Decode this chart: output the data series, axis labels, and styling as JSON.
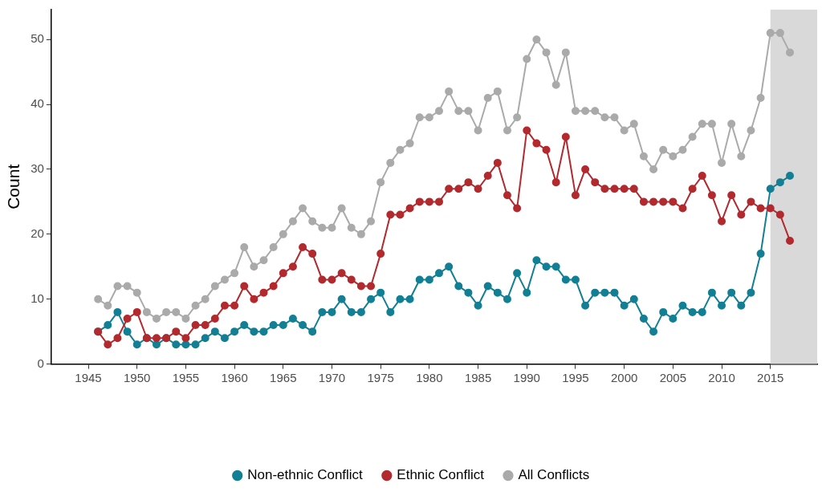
{
  "chart_data": {
    "type": "line",
    "ylabel": "Count",
    "x": [
      1946,
      1947,
      1948,
      1949,
      1950,
      1951,
      1952,
      1953,
      1954,
      1955,
      1956,
      1957,
      1958,
      1959,
      1960,
      1961,
      1962,
      1963,
      1964,
      1965,
      1966,
      1967,
      1968,
      1969,
      1970,
      1971,
      1972,
      1973,
      1974,
      1975,
      1976,
      1977,
      1978,
      1979,
      1980,
      1981,
      1982,
      1983,
      1984,
      1985,
      1986,
      1987,
      1988,
      1989,
      1990,
      1991,
      1992,
      1993,
      1994,
      1995,
      1996,
      1997,
      1998,
      1999,
      2000,
      2001,
      2002,
      2003,
      2004,
      2005,
      2006,
      2007,
      2008,
      2009,
      2010,
      2011,
      2012,
      2013,
      2014,
      2015,
      2016,
      2017
    ],
    "series": [
      {
        "name": "Non-ethnic Conflict",
        "color": "#127f94",
        "values": [
          5,
          6,
          8,
          5,
          3,
          4,
          3,
          4,
          3,
          3,
          3,
          4,
          5,
          4,
          5,
          6,
          5,
          5,
          6,
          6,
          7,
          6,
          5,
          8,
          8,
          10,
          8,
          8,
          10,
          11,
          8,
          10,
          10,
          13,
          13,
          14,
          15,
          12,
          11,
          9,
          12,
          11,
          10,
          14,
          11,
          16,
          15,
          15,
          13,
          13,
          9,
          11,
          11,
          11,
          9,
          10,
          7,
          5,
          8,
          7,
          9,
          8,
          8,
          11,
          9,
          11,
          9,
          11,
          17,
          27,
          28,
          29
        ]
      },
      {
        "name": "Ethnic Conflict",
        "color": "#b2292e",
        "values": [
          5,
          3,
          4,
          7,
          8,
          4,
          4,
          4,
          5,
          4,
          6,
          6,
          7,
          9,
          9,
          12,
          10,
          11,
          12,
          14,
          15,
          18,
          17,
          13,
          13,
          14,
          13,
          12,
          12,
          17,
          23,
          23,
          24,
          25,
          25,
          25,
          27,
          27,
          28,
          27,
          29,
          31,
          26,
          24,
          36,
          34,
          33,
          28,
          35,
          26,
          30,
          28,
          27,
          27,
          27,
          27,
          25,
          25,
          25,
          25,
          24,
          27,
          29,
          26,
          22,
          26,
          23,
          25,
          24,
          24,
          23,
          19
        ]
      },
      {
        "name": "All Conflicts",
        "color": "#aaaaaa",
        "values": [
          10,
          9,
          12,
          12,
          11,
          8,
          7,
          8,
          8,
          7,
          9,
          10,
          12,
          13,
          14,
          18,
          15,
          16,
          18,
          20,
          22,
          24,
          22,
          21,
          21,
          24,
          21,
          20,
          22,
          28,
          31,
          33,
          34,
          38,
          38,
          39,
          42,
          39,
          39,
          36,
          41,
          42,
          36,
          38,
          47,
          50,
          48,
          43,
          48,
          39,
          39,
          39,
          38,
          38,
          36,
          37,
          32,
          30,
          33,
          32,
          33,
          35,
          37,
          37,
          31,
          37,
          32,
          36,
          41,
          51,
          51,
          48
        ]
      }
    ],
    "xlim": [
      1941.2,
      2019.8
    ],
    "xticks": [
      1945,
      1950,
      1955,
      1960,
      1965,
      1970,
      1975,
      1980,
      1985,
      1990,
      1995,
      2000,
      2005,
      2010,
      2015
    ],
    "ylim": [
      0,
      54.6
    ],
    "yticks": [
      0,
      10,
      20,
      30,
      40,
      50
    ],
    "bands": [
      {
        "axis": "x",
        "from": 2015,
        "to": 2019.8,
        "color": "#d9d9d9"
      }
    ],
    "marker": "circle",
    "grid": false,
    "legend": "bottom"
  }
}
